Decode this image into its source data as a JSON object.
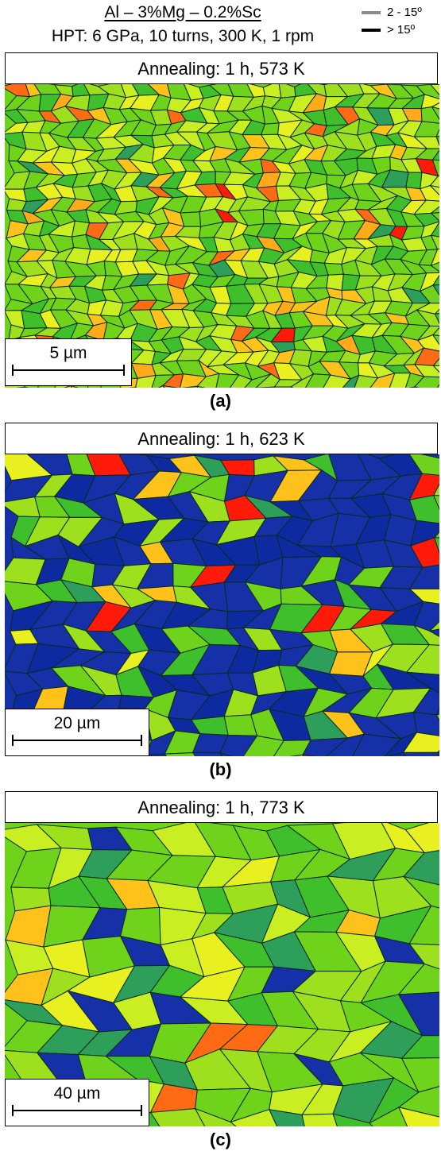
{
  "header": {
    "title": "Al – 3%Mg – 0.2%Sc",
    "subtitle": "HPT: 6 GPa, 10 turns, 300 K, 1 rpm"
  },
  "legend": [
    {
      "label": "2 - 15º",
      "color": "#8a8a8a"
    },
    {
      "label": "> 15º",
      "color": "#000000"
    }
  ],
  "panels": [
    {
      "title": "Annealing: 1 h, 573 K",
      "scale": "5 µm",
      "caption": "(a)",
      "grain_size": "fine",
      "palette": [
        "#6fd31c",
        "#9fe01e",
        "#c9ee22",
        "#3fbf2c",
        "#e8f020",
        "#ffc21a",
        "#ffaa18",
        "#ff6a14",
        "#ff1a0a",
        "#2e9f5a"
      ],
      "weights": [
        28,
        20,
        14,
        14,
        9,
        6,
        3,
        3,
        1,
        2
      ]
    },
    {
      "title": "Annealing: 1 h, 623 K",
      "scale": "20 µm",
      "caption": "(b)",
      "grain_size": "bimodal",
      "palette": [
        "#1631a8",
        "#0e2aa0",
        "#6fd31c",
        "#9fe01e",
        "#3fbf2c",
        "#ffc21a",
        "#ff1a0a",
        "#e8f020",
        "#2e9f5a"
      ],
      "weights": [
        34,
        20,
        12,
        10,
        7,
        7,
        4,
        4,
        2
      ]
    },
    {
      "title": "Annealing: 1 h, 773 K",
      "scale": "40 µm",
      "caption": "(c)",
      "grain_size": "coarse",
      "palette": [
        "#6fd31c",
        "#3fbf2c",
        "#9fe01e",
        "#c9ee22",
        "#2e9f5a",
        "#e8f020",
        "#ffc21a",
        "#ff6a14",
        "#1631a8"
      ],
      "weights": [
        24,
        18,
        16,
        14,
        10,
        8,
        4,
        2,
        4
      ]
    }
  ]
}
